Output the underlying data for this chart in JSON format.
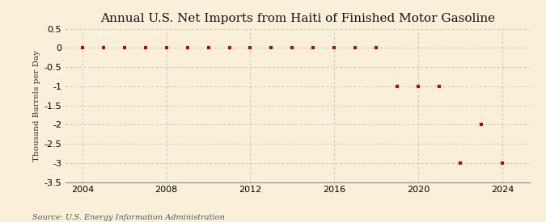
{
  "title": "Annual U.S. Net Imports from Haiti of Finished Motor Gasoline",
  "ylabel": "Thousand Barrels per Day",
  "source": "Source: U.S. Energy Information Administration",
  "years": [
    2004,
    2005,
    2006,
    2007,
    2008,
    2009,
    2010,
    2011,
    2012,
    2013,
    2014,
    2015,
    2016,
    2017,
    2018,
    2019,
    2020,
    2021,
    2022,
    2023,
    2024
  ],
  "values": [
    0.0,
    0.0,
    0.0,
    0.0,
    0.0,
    0.0,
    0.0,
    0.0,
    0.0,
    0.0,
    0.0,
    0.0,
    0.0,
    0.0,
    0.0,
    -1.0,
    -1.0,
    -1.0,
    -3.0,
    -2.0,
    -3.0
  ],
  "ylim": [
    -3.5,
    0.5
  ],
  "yticks": [
    0.5,
    0.0,
    -0.5,
    -1.0,
    -1.5,
    -2.0,
    -2.5,
    -3.0,
    -3.5
  ],
  "xlim": [
    2003.2,
    2025.3
  ],
  "xticks": [
    2004,
    2008,
    2012,
    2016,
    2020,
    2024
  ],
  "bg_color": "#faefd9",
  "grid_color": "#aaaaaa",
  "marker_color": "#cc0000",
  "marker_size": 3.5,
  "title_fontsize": 11,
  "label_fontsize": 7.5,
  "tick_fontsize": 8,
  "source_fontsize": 7
}
